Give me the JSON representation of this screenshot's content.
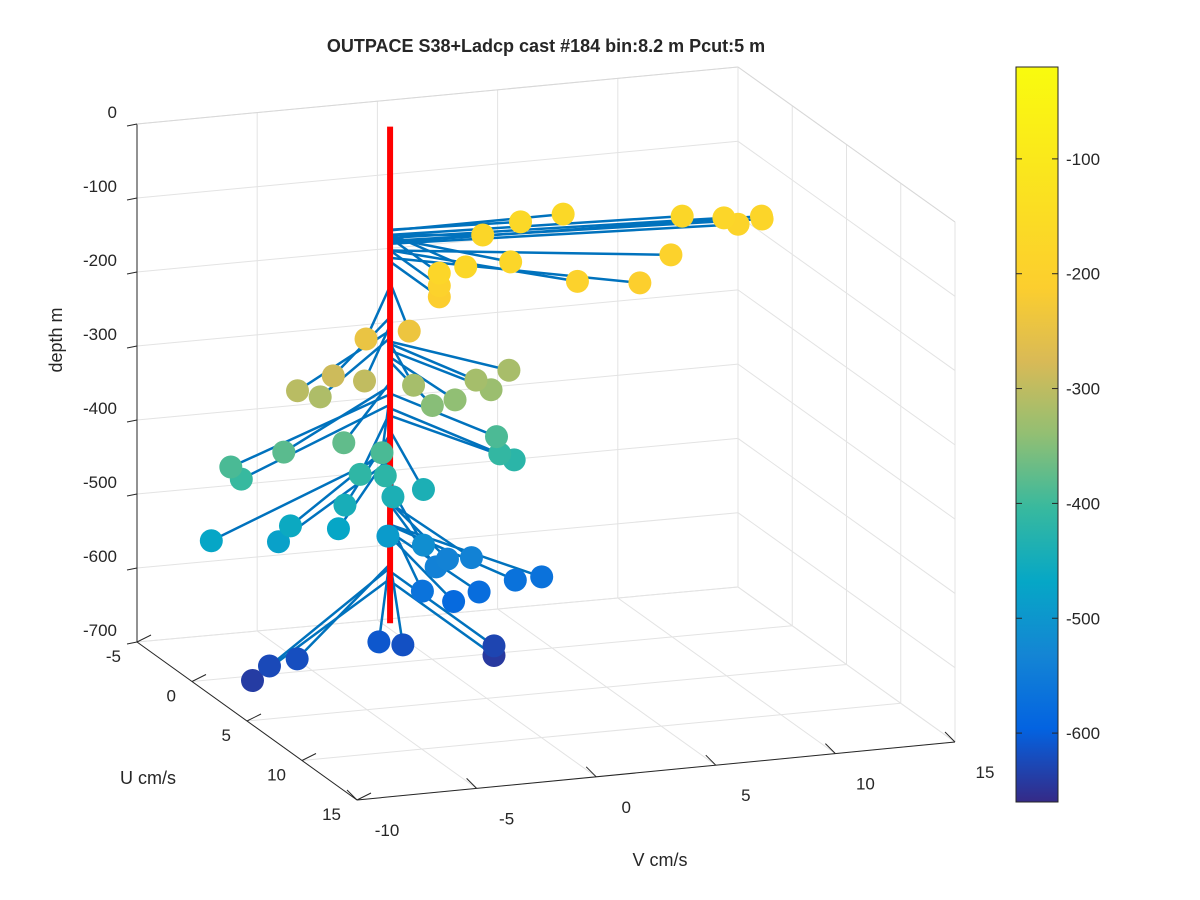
{
  "chart_data": {
    "type": "scatter",
    "title": "OUTPACE S38+Ladcp cast #184 bin:8.2 m  Pcut:5 m",
    "xlabel": "V cm/s",
    "ylabel": "U cm/s",
    "zlabel": "depth m",
    "xlim": [
      -10,
      15
    ],
    "ylim": [
      -5,
      15
    ],
    "zlim": [
      -700,
      0
    ],
    "xticks": [
      "-10",
      "-5",
      "0",
      "5",
      "10",
      "15"
    ],
    "yticks": [
      "-5",
      "0",
      "5",
      "10",
      "15"
    ],
    "zticks": [
      "0",
      "-100",
      "-200",
      "-300",
      "-400",
      "-500",
      "-600",
      "-700"
    ],
    "grid": true,
    "colormap": "parula",
    "colorbar": {
      "ticks": [
        "-100",
        "-200",
        "-300",
        "-400",
        "-500",
        "-600"
      ],
      "range": [
        -660,
        -20
      ]
    },
    "series": [
      {
        "marker": "circle",
        "stem_color": "#0072bd",
        "points": [
          {
            "v": 15.1,
            "u": -3.0,
            "depth": -184
          },
          {
            "v": 15.3,
            "u": -3.5,
            "depth": -186
          },
          {
            "v": 14.1,
            "u": -3.0,
            "depth": -188
          },
          {
            "v": 13.6,
            "u": -3.2,
            "depth": -180
          },
          {
            "v": 12.0,
            "u": -3.5,
            "depth": -176
          },
          {
            "v": 7.5,
            "u": -4.5,
            "depth": -170
          },
          {
            "v": 5.5,
            "u": -4.0,
            "depth": -169
          },
          {
            "v": 3.7,
            "u": -3.5,
            "depth": -176
          },
          {
            "v": 10.4,
            "u": -1.0,
            "depth": -197
          },
          {
            "v": 8.2,
            "u": 1.0,
            "depth": -207
          },
          {
            "v": 5.6,
            "u": 1.0,
            "depth": -197
          },
          {
            "v": 3.5,
            "u": -0.5,
            "depth": -180
          },
          {
            "v": 1.4,
            "u": 0.0,
            "depth": -175
          },
          {
            "v": 0.3,
            "u": 0.0,
            "depth": -180
          },
          {
            "v": 0.3,
            "u": 0.0,
            "depth": -197
          },
          {
            "v": 0.3,
            "u": 0.0,
            "depth": -212
          },
          {
            "v": -1.5,
            "u": 1.2,
            "depth": -240
          },
          {
            "v": -3.3,
            "u": 1.2,
            "depth": -245
          },
          {
            "v": -4.8,
            "u": 1.5,
            "depth": -287
          },
          {
            "v": -6.2,
            "u": 1.3,
            "depth": -305
          },
          {
            "v": -3.5,
            "u": 1.5,
            "depth": -298
          },
          {
            "v": -5.3,
            "u": 1.4,
            "depth": -315
          },
          {
            "v": -1.0,
            "u": 0.5,
            "depth": -322
          },
          {
            "v": 3.2,
            "u": 0.0,
            "depth": -320
          },
          {
            "v": 1.6,
            "u": 0.5,
            "depth": -323
          },
          {
            "v": 2.0,
            "u": 1.0,
            "depth": -332
          },
          {
            "v": 0.5,
            "u": 1.0,
            "depth": -341
          },
          {
            "v": -0.4,
            "u": 0.9,
            "depth": -347
          },
          {
            "v": -9.3,
            "u": 2.0,
            "depth": -391
          },
          {
            "v": -7.0,
            "u": 1.8,
            "depth": -380
          },
          {
            "v": -4.5,
            "u": 1.8,
            "depth": -375
          },
          {
            "v": -3.0,
            "u": 2.0,
            "depth": -391
          },
          {
            "v": -9.0,
            "u": 2.3,
            "depth": -405
          },
          {
            "v": -4.0,
            "u": 2.2,
            "depth": -415
          },
          {
            "v": -3.0,
            "u": 2.3,
            "depth": -419
          },
          {
            "v": 2.0,
            "u": 1.5,
            "depth": -390
          },
          {
            "v": 2.6,
            "u": 1.8,
            "depth": -420
          },
          {
            "v": 2.0,
            "u": 1.8,
            "depth": -410
          },
          {
            "v": -10.8,
            "u": 3.5,
            "depth": -470
          },
          {
            "v": -7.5,
            "u": 3.5,
            "depth": -460
          },
          {
            "v": -5.0,
            "u": 3.0,
            "depth": -445
          },
          {
            "v": -3.0,
            "u": 3.0,
            "depth": -440
          },
          {
            "v": -5.5,
            "u": 3.5,
            "depth": -470
          },
          {
            "v": -1.5,
            "u": 2.5,
            "depth": -440
          },
          {
            "v": -8.0,
            "u": 3.5,
            "depth": -480
          },
          {
            "v": -3.3,
            "u": 3.2,
            "depth": -490
          },
          {
            "v": -1.5,
            "u": 2.5,
            "depth": -515
          },
          {
            "v": -1.2,
            "u": 3.0,
            "depth": -540
          },
          {
            "v": -0.5,
            "u": 2.5,
            "depth": -537
          },
          {
            "v": 0.5,
            "u": 2.5,
            "depth": -538
          },
          {
            "v": -2.0,
            "u": 3.5,
            "depth": -565
          },
          {
            "v": -0.7,
            "u": 3.5,
            "depth": -583
          },
          {
            "v": 0.5,
            "u": 3.2,
            "depth": -577
          },
          {
            "v": 2.1,
            "u": 3.0,
            "depth": -568
          },
          {
            "v": 3.2,
            "u": 3.0,
            "depth": -567
          },
          {
            "v": -10.0,
            "u": 5.5,
            "depth": -640
          },
          {
            "v": -9.2,
            "u": 5.3,
            "depth": -625
          },
          {
            "v": -8.0,
            "u": 5.2,
            "depth": -620
          },
          {
            "v": -4.5,
            "u": 5.0,
            "depth": -610
          },
          {
            "v": -3.5,
            "u": 5.0,
            "depth": -617
          },
          {
            "v": 0.3,
            "u": 5.0,
            "depth": -630
          },
          {
            "v": 0.3,
            "u": 5.0,
            "depth": -643
          }
        ]
      }
    ],
    "reference_line": {
      "color": "#ff0000",
      "v": 0.3,
      "u": -4.5,
      "depth_range": [
        -30,
        -700
      ]
    }
  }
}
